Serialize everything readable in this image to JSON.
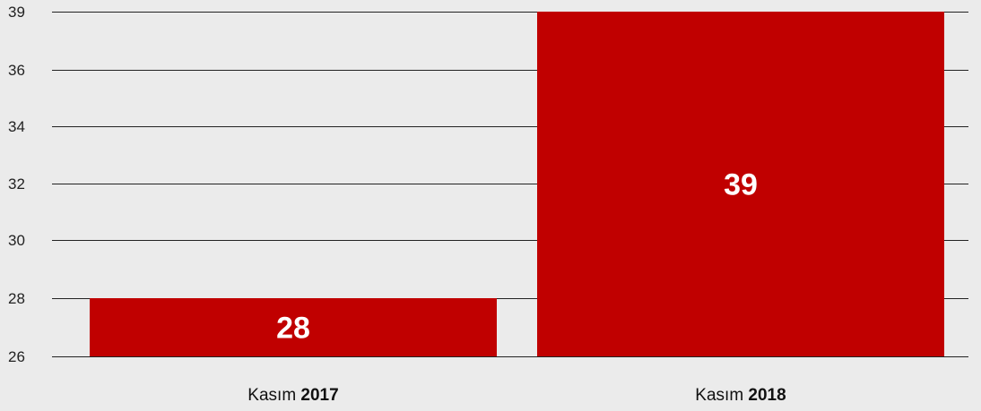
{
  "chart_data": {
    "type": "bar",
    "categories": [
      {
        "prefix": "Kasım ",
        "year": "2017"
      },
      {
        "prefix": "Kasım ",
        "year": "2018"
      }
    ],
    "values": [
      28,
      39
    ],
    "data_labels": [
      "28",
      "39"
    ],
    "yticks": [
      "26",
      "28",
      "30",
      "32",
      "34",
      "36",
      "39"
    ],
    "ylim": [
      26,
      39
    ],
    "grid": true,
    "bar_color": "#c00000",
    "background": "#ebebeb",
    "gridline_color": "#222222",
    "label_color": "#ffffff"
  }
}
